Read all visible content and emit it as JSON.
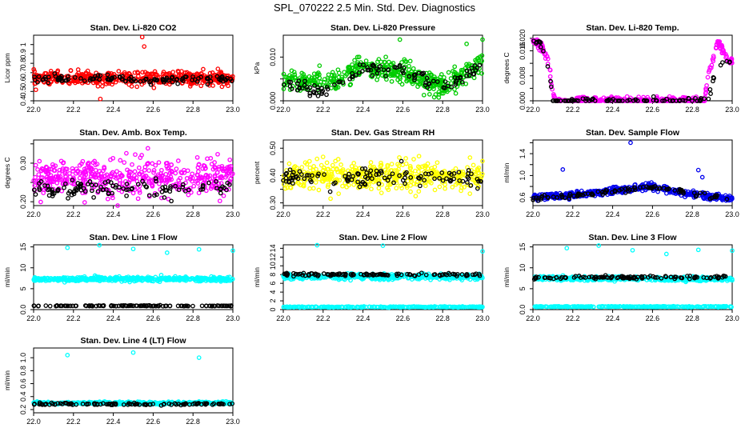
{
  "page": {
    "title": "SPL_070222  2.5 Min. Std. Dev. Diagnostics"
  },
  "chart_data": [
    {
      "type": "scatter",
      "title": "Stan. Dev. Li-820 CO2",
      "ylabel": "Licor ppm",
      "xlim": [
        22.0,
        23.0
      ],
      "ylim": [
        0.4,
        1.1
      ],
      "x_ticks": [
        22.0,
        22.2,
        22.4,
        22.6,
        22.8,
        23.0
      ],
      "y_ticks": [
        0.4,
        0.5,
        0.6,
        0.7,
        0.8,
        0.9,
        1.0
      ],
      "series": [
        {
          "color": "#ff0000",
          "mean": [
            [
              22.0,
              0.64
            ],
            [
              23.0,
              0.64
            ]
          ],
          "spread": 0.07,
          "n": 480,
          "outliers": [
            [
              22.545,
              1.08
            ],
            [
              22.555,
              0.98
            ],
            [
              22.335,
              0.42
            ]
          ]
        },
        {
          "color": "#000000",
          "mean": [
            [
              22.0,
              0.63
            ],
            [
              23.0,
              0.63
            ]
          ],
          "spread": 0.04,
          "n": 120,
          "outliers": []
        }
      ]
    },
    {
      "type": "scatter",
      "title": "Stan. Dev. Li-820 Pressure",
      "ylabel": "kPa",
      "xlim": [
        22.0,
        23.0
      ],
      "ylim": [
        0.0,
        0.015
      ],
      "x_ticks": [
        22.0,
        22.2,
        22.4,
        22.6,
        22.8,
        23.0
      ],
      "y_ticks": [
        0.0,
        0.005,
        0.01
      ],
      "y_tick_labels": [
        "0.000",
        "",
        "0.010"
      ],
      "series": [
        {
          "color": "#00cc00",
          "mean": [
            [
              22.0,
              0.005
            ],
            [
              22.2,
              0.004
            ],
            [
              22.3,
              0.005
            ],
            [
              22.4,
              0.008
            ],
            [
              22.5,
              0.007
            ],
            [
              22.65,
              0.006
            ],
            [
              22.8,
              0.003
            ],
            [
              23.0,
              0.009
            ]
          ],
          "spread": 0.0025,
          "n": 460,
          "outliers": [
            [
              22.585,
              0.014
            ],
            [
              22.92,
              0.013
            ],
            [
              23.0,
              0.014
            ]
          ]
        },
        {
          "color": "#000000",
          "mean": [
            [
              22.0,
              0.004
            ],
            [
              22.2,
              0.002
            ],
            [
              22.4,
              0.007
            ],
            [
              22.6,
              0.007
            ],
            [
              22.8,
              0.003
            ],
            [
              23.0,
              0.008
            ]
          ],
          "spread": 0.0015,
          "n": 110,
          "outliers": []
        }
      ]
    },
    {
      "type": "scatter",
      "title": "Stan. Dev. Li-820 Temp.",
      "ylabel": "degrees C",
      "xlim": [
        22.0,
        23.0
      ],
      "ylim": [
        0.0,
        0.021
      ],
      "x_ticks": [
        22.0,
        22.2,
        22.4,
        22.6,
        22.8,
        23.0
      ],
      "y_ticks": [
        0.0,
        0.004,
        0.008,
        0.012,
        0.016,
        0.02
      ],
      "y_tick_labels": [
        "0.000",
        "",
        "0.008",
        "",
        "0.016",
        "0.020"
      ],
      "series": [
        {
          "color": "#ff00ff",
          "mean": [
            [
              22.0,
              0.019
            ],
            [
              22.04,
              0.018
            ],
            [
              22.08,
              0.012
            ],
            [
              22.1,
              0.002
            ],
            [
              22.12,
              0.0
            ],
            [
              22.86,
              0.0
            ],
            [
              22.88,
              0.008
            ],
            [
              22.93,
              0.019
            ],
            [
              22.97,
              0.014
            ],
            [
              23.0,
              0.012
            ]
          ],
          "spread": 0.0012,
          "n": 420,
          "outliers": []
        },
        {
          "color": "#000000",
          "mean": [
            [
              22.0,
              0.02
            ],
            [
              22.04,
              0.018
            ],
            [
              22.08,
              0.01
            ],
            [
              22.1,
              0.0
            ],
            [
              22.88,
              0.0
            ],
            [
              22.92,
              0.01
            ],
            [
              22.96,
              0.013
            ],
            [
              23.0,
              0.012
            ]
          ],
          "spread": 0.001,
          "n": 100,
          "outliers": []
        }
      ]
    },
    {
      "type": "scatter",
      "title": "Stan. Dev. Amb. Box Temp.",
      "ylabel": "degrees C",
      "xlim": [
        22.0,
        23.0
      ],
      "ylim": [
        0.19,
        0.36
      ],
      "x_ticks": [
        22.0,
        22.2,
        22.4,
        22.6,
        22.8,
        23.0
      ],
      "y_ticks": [
        0.2,
        0.25,
        0.3,
        0.35
      ],
      "y_tick_labels": [
        "0.20",
        "",
        "0.30",
        ""
      ],
      "series": [
        {
          "color": "#ff00ff",
          "mean": [
            [
              22.0,
              0.26
            ],
            [
              23.0,
              0.26
            ]
          ],
          "spread": 0.05,
          "n": 470,
          "outliers": []
        },
        {
          "color": "#000000",
          "mean": [
            [
              22.0,
              0.235
            ],
            [
              23.0,
              0.235
            ]
          ],
          "spread": 0.02,
          "n": 110,
          "outliers": []
        }
      ]
    },
    {
      "type": "scatter",
      "title": "Stan. Dev. Gas Stream RH",
      "ylabel": "percent",
      "xlim": [
        22.0,
        23.0
      ],
      "ylim": [
        0.29,
        0.53
      ],
      "x_ticks": [
        22.0,
        22.2,
        22.4,
        22.6,
        22.8,
        23.0
      ],
      "y_ticks": [
        0.3,
        0.35,
        0.4,
        0.45,
        0.5
      ],
      "y_tick_labels": [
        "0.30",
        "",
        "0.40",
        "",
        "0.50"
      ],
      "series": [
        {
          "color": "#ffff00",
          "mean": [
            [
              22.0,
              0.4
            ],
            [
              23.0,
              0.4
            ]
          ],
          "spread": 0.05,
          "n": 470,
          "outliers": []
        },
        {
          "color": "#000000",
          "mean": [
            [
              22.0,
              0.39
            ],
            [
              23.0,
              0.39
            ]
          ],
          "spread": 0.035,
          "n": 110,
          "outliers": []
        }
      ]
    },
    {
      "type": "scatter",
      "title": "Stan. Dev. Sample Flow",
      "ylabel": "ml/min",
      "xlim": [
        22.0,
        23.0
      ],
      "ylim": [
        0.45,
        1.65
      ],
      "x_ticks": [
        22.0,
        22.2,
        22.4,
        22.6,
        22.8,
        23.0
      ],
      "y_ticks": [
        0.6,
        0.8,
        1.0,
        1.2,
        1.4,
        1.6
      ],
      "y_tick_labels": [
        "0.6",
        "",
        "1.0",
        "",
        "1.4",
        ""
      ],
      "series": [
        {
          "color": "#0000ee",
          "mean": [
            [
              22.0,
              0.6
            ],
            [
              22.2,
              0.64
            ],
            [
              22.4,
              0.72
            ],
            [
              22.6,
              0.8
            ],
            [
              22.75,
              0.68
            ],
            [
              23.0,
              0.57
            ]
          ],
          "spread": 0.06,
          "n": 480,
          "outliers": [
            [
              22.49,
              1.6
            ],
            [
              22.83,
              1.1
            ],
            [
              22.15,
              1.11
            ],
            [
              22.85,
              0.97
            ]
          ]
        },
        {
          "color": "#000000",
          "mean": [
            [
              22.0,
              0.58
            ],
            [
              22.3,
              0.66
            ],
            [
              22.6,
              0.79
            ],
            [
              23.0,
              0.58
            ]
          ],
          "spread": 0.04,
          "n": 100,
          "outliers": []
        }
      ]
    },
    {
      "type": "scatter",
      "title": "Stan. Dev. Line 1 Flow",
      "ylabel": "ml/min",
      "xlim": [
        22.0,
        23.0
      ],
      "ylim": [
        0.0,
        15.5
      ],
      "x_ticks": [
        22.0,
        22.2,
        22.4,
        22.6,
        22.8,
        23.0
      ],
      "y_ticks": [
        0,
        5,
        10,
        15
      ],
      "series": [
        {
          "color": "#00ffff",
          "mean": [
            [
              22.0,
              7.3
            ],
            [
              23.0,
              7.3
            ]
          ],
          "spread": 0.5,
          "n": 480,
          "outliers": [
            [
              22.17,
              14.8
            ],
            [
              22.33,
              15.4
            ],
            [
              22.5,
              14.5
            ],
            [
              22.67,
              13.6
            ],
            [
              22.83,
              14.4
            ],
            [
              23.0,
              14.1
            ]
          ]
        },
        {
          "color": "#000000",
          "mean": [
            [
              22.0,
              0.9
            ],
            [
              23.0,
              0.9
            ]
          ],
          "spread": 0.1,
          "n": 120,
          "outliers": []
        }
      ]
    },
    {
      "type": "scatter",
      "title": "Stan. Dev. Line 2 Flow",
      "ylabel": "ml/min",
      "xlim": [
        22.0,
        23.0
      ],
      "ylim": [
        0.0,
        14.8
      ],
      "x_ticks": [
        22.0,
        22.2,
        22.4,
        22.6,
        22.8,
        23.0
      ],
      "y_ticks": [
        0,
        2,
        4,
        6,
        8,
        10,
        12,
        14
      ],
      "y_tick_labels": [
        "0",
        "2",
        "4",
        "6",
        "8",
        "10",
        "12",
        "14"
      ],
      "series": [
        {
          "color": "#00ffff",
          "mean": [
            [
              22.0,
              7.5
            ],
            [
              23.0,
              7.5
            ]
          ],
          "spread": 0.6,
          "n": 420,
          "outliers": [
            [
              22.17,
              14.7
            ],
            [
              22.5,
              14.6
            ],
            [
              23.0,
              13.3
            ]
          ]
        },
        {
          "color": "#00ffff",
          "mean": [
            [
              22.0,
              0.6
            ],
            [
              23.0,
              0.6
            ]
          ],
          "spread": 0.1,
          "n": 260,
          "outliers": []
        },
        {
          "color": "#000000",
          "mean": [
            [
              22.0,
              8.0
            ],
            [
              23.0,
              8.0
            ]
          ],
          "spread": 0.3,
          "n": 110,
          "outliers": []
        }
      ]
    },
    {
      "type": "scatter",
      "title": "Stan. Dev. Line 3 Flow",
      "ylabel": "ml/min",
      "xlim": [
        22.0,
        23.0
      ],
      "ylim": [
        0.0,
        15.5
      ],
      "x_ticks": [
        22.0,
        22.2,
        22.4,
        22.6,
        22.8,
        23.0
      ],
      "y_ticks": [
        0,
        5,
        10,
        15
      ],
      "series": [
        {
          "color": "#00ffff",
          "mean": [
            [
              22.0,
              7.5
            ],
            [
              23.0,
              7.3
            ]
          ],
          "spread": 0.5,
          "n": 420,
          "outliers": [
            [
              22.17,
              14.7
            ],
            [
              22.33,
              15.3
            ],
            [
              22.5,
              14.2
            ],
            [
              22.67,
              13.3
            ],
            [
              22.83,
              14.3
            ],
            [
              23.0,
              14.1
            ]
          ]
        },
        {
          "color": "#00ffff",
          "mean": [
            [
              22.0,
              0.7
            ],
            [
              23.0,
              0.7
            ]
          ],
          "spread": 0.1,
          "n": 260,
          "outliers": []
        },
        {
          "color": "#000000",
          "mean": [
            [
              22.0,
              7.7
            ],
            [
              23.0,
              7.7
            ]
          ],
          "spread": 0.35,
          "n": 110,
          "outliers": []
        }
      ]
    },
    {
      "type": "scatter",
      "title": "Stan. Dev. Line 4 (LT) Flow",
      "ylabel": "ml/min",
      "xlim": [
        22.0,
        23.0
      ],
      "ylim": [
        0.15,
        1.15
      ],
      "x_ticks": [
        22.0,
        22.2,
        22.4,
        22.6,
        22.8,
        23.0
      ],
      "y_ticks": [
        0.2,
        0.4,
        0.6,
        0.8,
        1.0
      ],
      "y_tick_labels": [
        "0.2",
        "0.4",
        "0.6",
        "0.8",
        "1.0"
      ],
      "series": [
        {
          "color": "#00ffff",
          "mean": [
            [
              22.0,
              0.3
            ],
            [
              23.0,
              0.3
            ]
          ],
          "spread": 0.02,
          "n": 460,
          "outliers": [
            [
              22.17,
              1.04
            ],
            [
              22.5,
              1.08
            ],
            [
              22.83,
              1.0
            ]
          ]
        },
        {
          "color": "#000000",
          "mean": [
            [
              22.0,
              0.285
            ],
            [
              23.0,
              0.285
            ]
          ],
          "spread": 0.015,
          "n": 110,
          "outliers": []
        }
      ]
    }
  ]
}
